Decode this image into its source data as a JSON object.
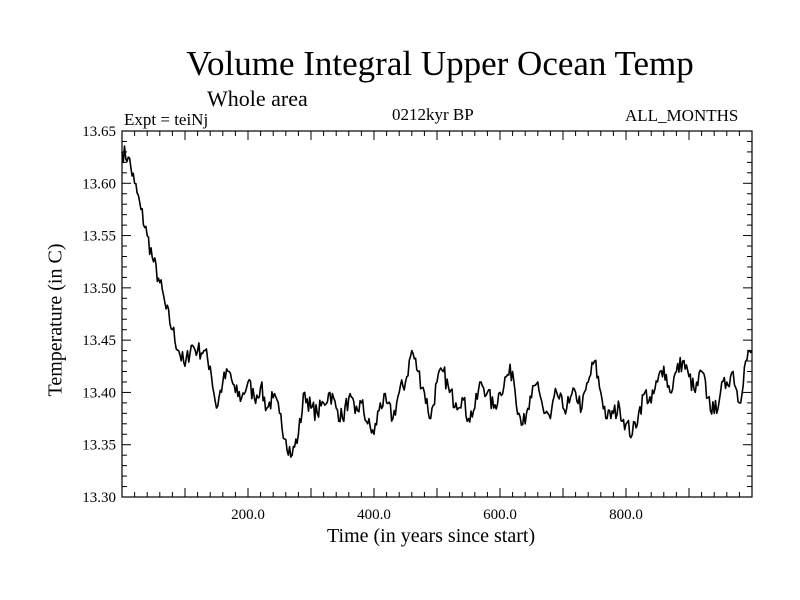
{
  "chart_data": {
    "type": "line",
    "title": "Volume Integral Upper Ocean Temp",
    "subtitle": "Whole area",
    "expt_label": "Expt = teiNj",
    "period_label": "0212kyr BP",
    "months_label": "ALL_MONTHS",
    "xlabel": "Time (in years since start)",
    "ylabel": "Temperature (in C)",
    "xlim": [
      0,
      1000
    ],
    "ylim": [
      13.3,
      13.65
    ],
    "xticks": [
      200,
      400,
      600,
      800
    ],
    "xtick_labels": [
      "200.0",
      "400.0",
      "600.0",
      "800.0"
    ],
    "yticks": [
      13.3,
      13.35,
      13.4,
      13.45,
      13.5,
      13.55,
      13.6,
      13.65
    ],
    "ytick_labels": [
      "13.30",
      "13.35",
      "13.40",
      "13.45",
      "13.50",
      "13.55",
      "13.60",
      "13.65"
    ],
    "series": [
      {
        "name": "Volume Integral Upper Ocean Temp",
        "x": [
          0,
          10,
          20,
          30,
          40,
          50,
          60,
          70,
          80,
          90,
          100,
          110,
          120,
          130,
          140,
          150,
          160,
          170,
          180,
          190,
          200,
          210,
          220,
          230,
          240,
          250,
          260,
          270,
          280,
          290,
          300,
          310,
          320,
          330,
          340,
          350,
          360,
          370,
          380,
          390,
          400,
          410,
          420,
          430,
          440,
          450,
          460,
          470,
          480,
          490,
          500,
          510,
          520,
          530,
          540,
          550,
          560,
          570,
          580,
          590,
          600,
          610,
          620,
          630,
          640,
          650,
          660,
          670,
          680,
          690,
          700,
          710,
          720,
          730,
          740,
          750,
          760,
          770,
          780,
          790,
          800,
          810,
          820,
          830,
          840,
          850,
          860,
          870,
          880,
          890,
          900,
          910,
          920,
          930,
          940,
          950,
          960,
          970,
          980,
          990,
          1000
        ],
        "y": [
          13.63,
          13.625,
          13.6,
          13.575,
          13.55,
          13.525,
          13.505,
          13.48,
          13.46,
          13.44,
          13.425,
          13.445,
          13.44,
          13.44,
          13.425,
          13.385,
          13.41,
          13.42,
          13.4,
          13.395,
          13.41,
          13.395,
          13.405,
          13.385,
          13.395,
          13.38,
          13.355,
          13.34,
          13.36,
          13.4,
          13.385,
          13.38,
          13.39,
          13.4,
          13.385,
          13.375,
          13.395,
          13.38,
          13.39,
          13.37,
          13.36,
          13.39,
          13.39,
          13.375,
          13.4,
          13.41,
          13.44,
          13.42,
          13.4,
          13.375,
          13.41,
          13.42,
          13.4,
          13.39,
          13.395,
          13.375,
          13.385,
          13.41,
          13.4,
          13.385,
          13.4,
          13.415,
          13.42,
          13.38,
          13.37,
          13.395,
          13.41,
          13.38,
          13.375,
          13.4,
          13.385,
          13.39,
          13.4,
          13.385,
          13.41,
          13.43,
          13.4,
          13.375,
          13.38,
          13.385,
          13.37,
          13.36,
          13.38,
          13.4,
          13.39,
          13.41,
          13.425,
          13.4,
          13.42,
          13.43,
          13.415,
          13.4,
          13.42,
          13.395,
          13.38,
          13.4,
          13.41,
          13.42,
          13.39,
          13.43,
          13.44
        ]
      }
    ]
  }
}
